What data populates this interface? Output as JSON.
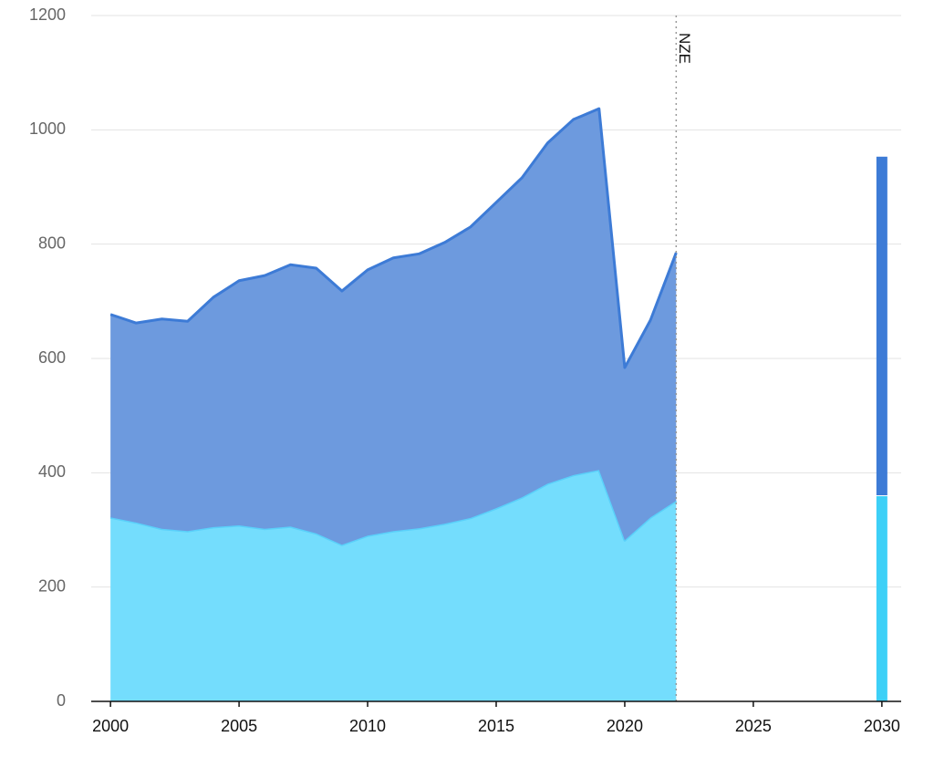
{
  "chart_data": [
    {
      "type": "area",
      "x": [
        2000,
        2001,
        2002,
        2003,
        2004,
        2005,
        2006,
        2007,
        2008,
        2009,
        2010,
        2011,
        2012,
        2013,
        2014,
        2015,
        2016,
        2017,
        2018,
        2019,
        2020,
        2021,
        2022
      ],
      "series": [
        {
          "color": "#74ddfd",
          "line_color": "#5ad0fa",
          "values": [
            322,
            313,
            302,
            298,
            305,
            308,
            302,
            306,
            294,
            274,
            290,
            298,
            303,
            311,
            321,
            338,
            357,
            381,
            396,
            405,
            282,
            322,
            351
          ]
        },
        {
          "color": "#6d9ade",
          "line_color": "#3d7bd6",
          "values": [
            355,
            349,
            367,
            367,
            402,
            428,
            443,
            458,
            464,
            444,
            465,
            478,
            480,
            492,
            509,
            535,
            559,
            596,
            622,
            632,
            302,
            345,
            434
          ]
        }
      ],
      "stacked": true,
      "xlim": [
        1999.25,
        2030.75
      ],
      "xticks": [
        2000,
        2005,
        2010,
        2015,
        2020,
        2025,
        2030
      ],
      "ylim": [
        0,
        1200
      ],
      "yticks": [
        0,
        200,
        400,
        600,
        800,
        1000,
        1200
      ],
      "grid": true,
      "annotation": {
        "x": 2022,
        "text": "NZE"
      }
    },
    {
      "type": "bar",
      "x": [
        2030
      ],
      "series": [
        {
          "color": "#3dd0f7",
          "values": [
            359
          ]
        },
        {
          "color": "#3d7bd6",
          "values": [
            594
          ]
        }
      ],
      "stacked": true
    }
  ]
}
